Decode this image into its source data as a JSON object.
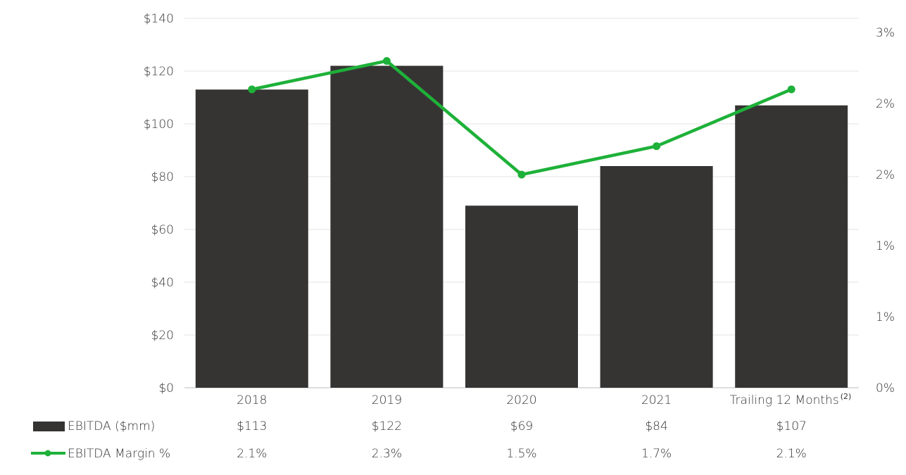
{
  "chart_data": {
    "type": "bar",
    "categories": [
      "2018",
      "2019",
      "2020",
      "2021",
      "Trailing 12 Months"
    ],
    "category_superscripts": [
      "",
      "",
      "",
      "",
      "(2)"
    ],
    "series": [
      {
        "name": "EBITDA ($mm)",
        "type": "bar",
        "axis": "left",
        "values": [
          113,
          122,
          69,
          84,
          107
        ],
        "labels": [
          "$113",
          "$122",
          "$69",
          "$84",
          "$107"
        ]
      },
      {
        "name": "EBITDA Margin %",
        "type": "line",
        "axis": "right",
        "values": [
          2.1,
          2.3,
          1.5,
          1.7,
          2.1
        ],
        "labels": [
          "2.1%",
          "2.3%",
          "1.5%",
          "1.7%",
          "2.1%"
        ]
      }
    ],
    "left_axis": {
      "ylim": [
        0,
        140
      ],
      "ticks": [
        0,
        20,
        40,
        60,
        80,
        100,
        120,
        140
      ],
      "tick_labels": [
        "$0",
        "$20",
        "$40",
        "$60",
        "$80",
        "$100",
        "$120",
        "$140"
      ]
    },
    "right_axis": {
      "ylim": [
        0,
        2.6
      ],
      "ticks": [
        0,
        0.5,
        1.0,
        1.5,
        2.0,
        2.5
      ],
      "tick_labels": [
        "0%",
        "1%",
        "1%",
        "2%",
        "2%",
        "3%"
      ]
    },
    "grid": true,
    "legend": "bottom-left data table",
    "colors": {
      "bar": "#353433",
      "line": "#1eb139",
      "grid": "#e3e3e3",
      "text": "#333333"
    }
  }
}
